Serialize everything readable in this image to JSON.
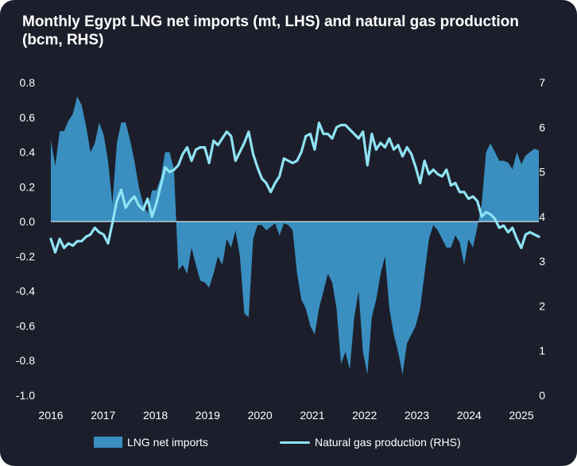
{
  "chart_data": {
    "type": "area",
    "title": "Monthly Egypt LNG net imports (mt, LHS) and natural gas production (bcm, RHS)",
    "x_start": "2016-01",
    "x_end": "2025-05",
    "x_ticks": [
      "2016",
      "2017",
      "2018",
      "2019",
      "2020",
      "2021",
      "2022",
      "2023",
      "2024",
      "2025"
    ],
    "y_left": {
      "min": -1.0,
      "max": 0.8,
      "ticks": [
        "0.8",
        "0.6",
        "0.4",
        "0.2",
        "0.0",
        "-0.2",
        "-0.4",
        "-0.6",
        "-0.8",
        "-1.0"
      ]
    },
    "y_right": {
      "min": 0,
      "max": 7,
      "ticks": [
        "7",
        "6",
        "5",
        "4",
        "3",
        "2",
        "1",
        "0"
      ]
    },
    "grid": false,
    "legend_position": "bottom",
    "colors": {
      "area": "#3a8fc0",
      "line": "#8fe3f3",
      "background": "#1c1f2b"
    },
    "series": [
      {
        "name": "LNG net imports",
        "type": "area",
        "axis": "left",
        "values": [
          0.47,
          0.32,
          0.52,
          0.52,
          0.58,
          0.62,
          0.72,
          0.67,
          0.55,
          0.4,
          0.45,
          0.57,
          0.5,
          0.35,
          0.1,
          0.45,
          0.57,
          0.57,
          0.47,
          0.35,
          0.2,
          0.1,
          0.05,
          0.18,
          0.18,
          0.25,
          0.4,
          0.4,
          0.3,
          -0.28,
          -0.25,
          -0.3,
          -0.15,
          -0.25,
          -0.34,
          -0.35,
          -0.38,
          -0.3,
          -0.2,
          -0.25,
          -0.1,
          -0.15,
          -0.05,
          -0.2,
          -0.53,
          -0.55,
          -0.1,
          -0.02,
          -0.02,
          -0.05,
          -0.03,
          -0.01,
          -0.08,
          -0.01,
          -0.02,
          -0.05,
          -0.3,
          -0.45,
          -0.5,
          -0.6,
          -0.65,
          -0.5,
          -0.4,
          -0.3,
          -0.35,
          -0.5,
          -0.82,
          -0.75,
          -0.85,
          -0.55,
          -0.4,
          -0.75,
          -0.88,
          -0.55,
          -0.45,
          -0.3,
          -0.2,
          -0.5,
          -0.65,
          -0.75,
          -0.88,
          -0.7,
          -0.65,
          -0.6,
          -0.5,
          -0.3,
          -0.1,
          -0.02,
          -0.05,
          -0.1,
          -0.15,
          -0.15,
          -0.08,
          -0.12,
          -0.25,
          -0.1,
          -0.15,
          -0.03,
          0.1,
          0.4,
          0.45,
          0.4,
          0.35,
          0.35,
          0.34,
          0.3,
          0.4,
          0.33,
          0.38,
          0.4,
          0.42,
          0.41
        ]
      },
      {
        "name": "Natural gas production (RHS)",
        "type": "line",
        "axis": "right",
        "values": [
          3.5,
          3.2,
          3.5,
          3.3,
          3.4,
          3.35,
          3.45,
          3.45,
          3.55,
          3.6,
          3.75,
          3.65,
          3.6,
          3.4,
          3.85,
          4.35,
          4.6,
          4.2,
          4.35,
          4.45,
          4.25,
          4.15,
          4.4,
          4.0,
          4.3,
          4.7,
          5.1,
          5.0,
          5.05,
          5.15,
          5.4,
          5.55,
          5.25,
          5.5,
          5.55,
          5.55,
          5.2,
          5.7,
          5.6,
          5.75,
          5.9,
          5.8,
          5.25,
          5.45,
          5.65,
          5.9,
          5.4,
          5.1,
          4.85,
          4.75,
          4.55,
          4.75,
          4.9,
          5.3,
          5.25,
          5.2,
          5.25,
          5.45,
          5.8,
          5.85,
          5.5,
          6.1,
          5.85,
          5.85,
          5.75,
          6.0,
          6.05,
          6.05,
          5.95,
          5.85,
          5.75,
          5.9,
          5.15,
          5.85,
          5.5,
          5.65,
          5.55,
          5.75,
          5.5,
          5.6,
          5.35,
          5.55,
          5.4,
          5.1,
          4.75,
          5.25,
          4.95,
          5.05,
          4.95,
          4.9,
          5.05,
          4.7,
          4.75,
          4.55,
          4.55,
          4.4,
          4.45,
          4.35,
          4.0,
          4.1,
          4.05,
          3.95,
          3.75,
          3.8,
          3.65,
          3.75,
          3.5,
          3.3,
          3.6,
          3.65,
          3.6,
          3.55
        ]
      }
    ]
  }
}
